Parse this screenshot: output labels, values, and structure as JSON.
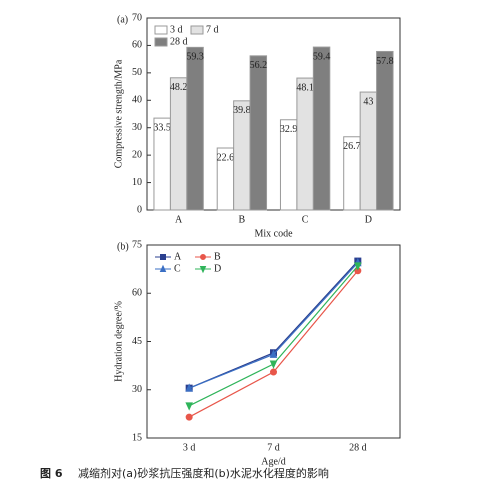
{
  "chart_data": [
    {
      "type": "bar",
      "panel_label": "(a)",
      "x_label": "Mix code",
      "y_label": "Compressive strength/MPa",
      "categories": [
        "A",
        "B",
        "C",
        "D"
      ],
      "series": [
        {
          "name": "3 d",
          "color": "#ffffff",
          "values": [
            33.5,
            22.6,
            32.9,
            26.7
          ]
        },
        {
          "name": "7 d",
          "color": "#e2e2e2",
          "values": [
            48.2,
            39.8,
            48.1,
            43
          ]
        },
        {
          "name": "28 d",
          "color": "#7f7f7f",
          "values": [
            59.3,
            56.2,
            59.4,
            57.8
          ]
        }
      ],
      "ylim": [
        0,
        70
      ],
      "yticks": [
        0,
        10,
        20,
        30,
        40,
        50,
        60,
        70
      ],
      "legend": "upper left"
    },
    {
      "type": "line",
      "panel_label": "(b)",
      "x_label": "Age/d",
      "y_label": "Hydration degree/%",
      "categories": [
        "3 d",
        "7 d",
        "28 d"
      ],
      "series": [
        {
          "name": "A",
          "color": "#2a3f8f",
          "marker": "square",
          "values": [
            30.5,
            41.5,
            70
          ]
        },
        {
          "name": "B",
          "color": "#e8564a",
          "marker": "circle",
          "values": [
            21.5,
            35.5,
            67
          ]
        },
        {
          "name": "C",
          "color": "#3a6fc4",
          "marker": "triangle-up",
          "values": [
            30.5,
            41,
            69.5
          ]
        },
        {
          "name": "D",
          "color": "#2fb45a",
          "marker": "triangle-down",
          "values": [
            25,
            38,
            68.5
          ]
        }
      ],
      "ylim": [
        15,
        75
      ],
      "yticks": [
        15,
        30,
        45,
        60,
        75
      ],
      "legend": "upper left"
    }
  ],
  "caption": {
    "label": "图 6",
    "text": "减缩剂对(a)砂浆抗压强度和(b)水泥水化程度的影响"
  }
}
